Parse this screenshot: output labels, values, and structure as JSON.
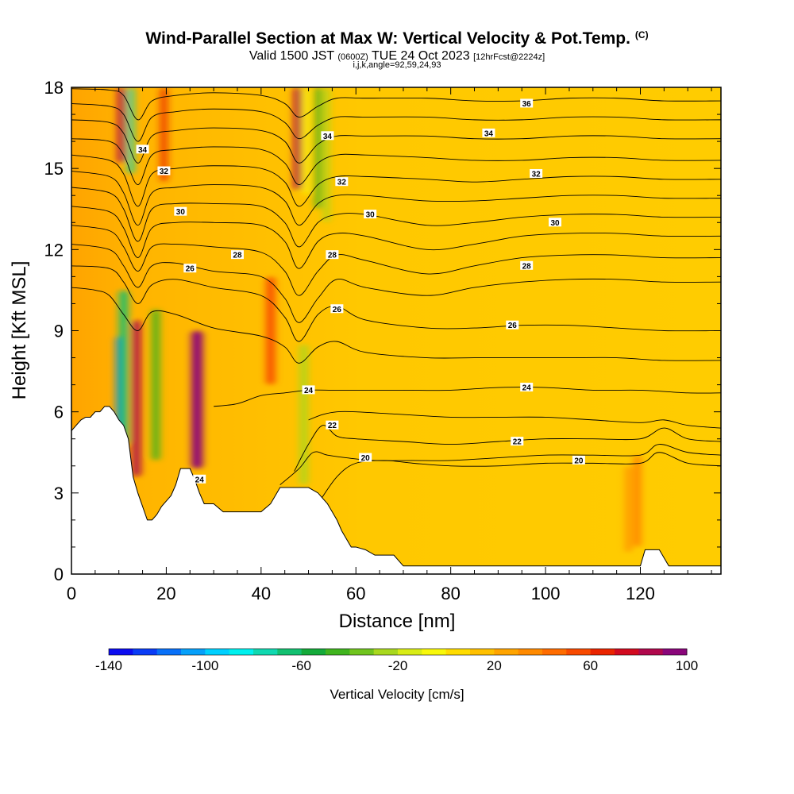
{
  "header": {
    "title": "Wind-Parallel Section at Max W: Vertical Velocity & Pot.Temp.",
    "copyright": "(C)",
    "valid_prefix": "Valid 1500 JST",
    "valid_utc": "(0600Z)",
    "valid_date": "TUE 24 Oct 2023",
    "forecast": "[12hrFcst@2224z]",
    "info": "i,j,k,angle=92,59,24,93"
  },
  "chart_data": {
    "type": "heatmap",
    "title": "Wind-Parallel Section at Max W: Vertical Velocity & Pot.Temp.",
    "xlabel": "Distance [nm]",
    "ylabel": "Height [Kft MSL]",
    "xlim": [
      0,
      137
    ],
    "ylim": [
      0,
      18
    ],
    "xticks": [
      0,
      20,
      40,
      60,
      80,
      100,
      120
    ],
    "yticks": [
      0,
      3,
      6,
      9,
      12,
      15,
      18
    ],
    "colorbar": {
      "label": "Vertical Velocity [cm/s]",
      "min": -140,
      "max": 100,
      "step": 10,
      "tick_values": [
        -140,
        -100,
        -60,
        -20,
        20,
        60,
        100
      ],
      "colors": [
        "#0c0cf0",
        "#0a3cf6",
        "#0870f8",
        "#06a0fa",
        "#00d0ff",
        "#00f0ee",
        "#10d8b0",
        "#12c070",
        "#14aa3a",
        "#40b41e",
        "#70c41e",
        "#a8d81e",
        "#d8ec16",
        "#f8f80a",
        "#ffdc00",
        "#ffc000",
        "#ffa400",
        "#ff8a00",
        "#ff6c00",
        "#f84a00",
        "#ea2400",
        "#d20a20",
        "#b0084c",
        "#8a067a",
        "#640690"
      ]
    },
    "contours": {
      "variable": "Potential Temperature",
      "labels": [
        {
          "text": "36",
          "x": 96,
          "y": 17.4
        },
        {
          "text": "34",
          "x": 15,
          "y": 15.7
        },
        {
          "text": "34",
          "x": 54,
          "y": 16.2
        },
        {
          "text": "34",
          "x": 88,
          "y": 16.3
        },
        {
          "text": "32",
          "x": 19.5,
          "y": 14.9
        },
        {
          "text": "32",
          "x": 57,
          "y": 14.5
        },
        {
          "text": "32",
          "x": 98,
          "y": 14.8
        },
        {
          "text": "30",
          "x": 23,
          "y": 13.4
        },
        {
          "text": "30",
          "x": 63,
          "y": 13.3
        },
        {
          "text": "30",
          "x": 102,
          "y": 13.0
        },
        {
          "text": "28",
          "x": 35,
          "y": 11.8
        },
        {
          "text": "28",
          "x": 55,
          "y": 11.8
        },
        {
          "text": "28",
          "x": 96,
          "y": 11.4
        },
        {
          "text": "26",
          "x": 25,
          "y": 11.3
        },
        {
          "text": "26",
          "x": 56,
          "y": 9.8
        },
        {
          "text": "26",
          "x": 93,
          "y": 9.2
        },
        {
          "text": "24",
          "x": 50,
          "y": 6.8
        },
        {
          "text": "24",
          "x": 96,
          "y": 6.9
        },
        {
          "text": "24",
          "x": 27,
          "y": 3.5
        },
        {
          "text": "22",
          "x": 55,
          "y": 5.5
        },
        {
          "text": "22",
          "x": 94,
          "y": 4.9
        },
        {
          "text": "20",
          "x": 62,
          "y": 4.3
        },
        {
          "text": "20",
          "x": 107,
          "y": 4.2
        }
      ],
      "lines": [
        {
          "level": 36,
          "x": [
            0,
            8,
            11,
            14,
            17,
            22,
            30,
            40,
            45,
            48,
            52,
            56,
            62,
            75,
            85,
            95,
            105,
            115,
            125,
            137
          ],
          "y": [
            17.95,
            17.9,
            17.7,
            16.8,
            17.5,
            17.7,
            17.8,
            17.7,
            17.4,
            16.9,
            17.3,
            17.6,
            17.6,
            17.6,
            17.5,
            17.5,
            17.6,
            17.6,
            17.5,
            17.5
          ]
        },
        {
          "level": 35,
          "x": [
            0,
            8,
            11,
            14,
            17,
            22,
            30,
            40,
            45,
            48,
            52,
            56,
            62,
            75,
            85,
            95,
            105,
            115,
            125,
            137
          ],
          "y": [
            17.4,
            17.3,
            17.0,
            16.0,
            16.9,
            17.1,
            17.2,
            17.1,
            16.7,
            16.1,
            16.6,
            16.9,
            16.9,
            16.9,
            16.8,
            16.8,
            16.9,
            16.9,
            16.8,
            16.8
          ]
        },
        {
          "level": 34,
          "x": [
            0,
            8,
            11,
            14,
            17,
            22,
            30,
            40,
            45,
            48,
            52,
            56,
            62,
            75,
            85,
            95,
            105,
            115,
            125,
            137
          ],
          "y": [
            16.8,
            16.7,
            16.3,
            15.2,
            16.2,
            16.4,
            16.5,
            16.4,
            16.0,
            15.2,
            15.9,
            16.2,
            16.2,
            16.2,
            16.1,
            16.1,
            16.2,
            16.2,
            16.1,
            16.1
          ]
        },
        {
          "level": 33,
          "x": [
            0,
            8,
            11,
            14,
            17,
            22,
            30,
            40,
            45,
            48,
            52,
            56,
            62,
            75,
            85,
            95,
            105,
            115,
            125,
            137
          ],
          "y": [
            16.1,
            16.0,
            15.5,
            14.4,
            15.5,
            15.7,
            15.8,
            15.7,
            15.2,
            14.4,
            15.2,
            15.5,
            15.5,
            15.4,
            15.3,
            15.3,
            15.4,
            15.4,
            15.3,
            15.3
          ]
        },
        {
          "level": 32,
          "x": [
            0,
            8,
            11,
            14,
            17,
            22,
            30,
            40,
            45,
            48,
            52,
            56,
            62,
            75,
            85,
            95,
            105,
            115,
            125,
            137
          ],
          "y": [
            15.5,
            15.3,
            14.8,
            13.6,
            14.8,
            15.0,
            15.1,
            15.0,
            14.5,
            13.6,
            14.4,
            14.7,
            14.7,
            14.6,
            14.5,
            14.6,
            14.7,
            14.7,
            14.6,
            14.6
          ]
        },
        {
          "level": 31,
          "x": [
            0,
            8,
            11,
            14,
            17,
            22,
            30,
            40,
            45,
            48,
            52,
            56,
            62,
            75,
            85,
            95,
            105,
            115,
            125,
            137
          ],
          "y": [
            14.9,
            14.7,
            14.1,
            12.9,
            14.1,
            14.3,
            14.4,
            14.3,
            13.8,
            12.9,
            13.7,
            14.0,
            14.0,
            13.8,
            13.8,
            13.9,
            14.0,
            14.0,
            13.9,
            13.9
          ]
        },
        {
          "level": 30,
          "x": [
            0,
            8,
            11,
            14,
            17,
            22,
            30,
            40,
            45,
            48,
            52,
            56,
            62,
            75,
            85,
            95,
            105,
            115,
            125,
            137
          ],
          "y": [
            14.3,
            14.1,
            13.5,
            12.3,
            13.5,
            13.7,
            13.7,
            13.6,
            13.0,
            12.1,
            13.0,
            13.3,
            13.3,
            12.9,
            13.0,
            13.2,
            13.3,
            13.3,
            13.2,
            13.2
          ]
        },
        {
          "level": 29,
          "x": [
            0,
            8,
            11,
            14,
            17,
            22,
            30,
            40,
            45,
            48,
            52,
            56,
            62,
            75,
            85,
            95,
            105,
            115,
            125,
            137
          ],
          "y": [
            13.6,
            13.4,
            12.8,
            11.7,
            12.8,
            13.0,
            13.0,
            12.9,
            12.3,
            11.3,
            12.3,
            12.6,
            12.5,
            12.0,
            12.2,
            12.5,
            12.6,
            12.6,
            12.5,
            12.5
          ]
        },
        {
          "level": 28,
          "x": [
            0,
            8,
            11,
            14,
            17,
            22,
            30,
            40,
            45,
            48,
            52,
            56,
            62,
            75,
            85,
            95,
            105,
            115,
            125,
            137
          ],
          "y": [
            12.9,
            12.7,
            12.1,
            11.2,
            12.1,
            12.2,
            12.1,
            11.9,
            11.2,
            10.3,
            11.2,
            11.8,
            11.6,
            11.1,
            11.4,
            11.7,
            11.8,
            11.8,
            11.7,
            11.7
          ]
        },
        {
          "level": 27,
          "x": [
            0,
            8,
            11,
            14,
            17,
            22,
            30,
            40,
            45,
            48,
            52,
            56,
            62,
            75,
            85,
            95,
            105,
            115,
            125,
            137
          ],
          "y": [
            12.2,
            12.0,
            11.4,
            10.6,
            11.4,
            11.5,
            11.2,
            11.0,
            10.2,
            9.3,
            10.2,
            10.9,
            10.6,
            10.3,
            10.6,
            10.8,
            10.9,
            10.9,
            10.8,
            10.8
          ]
        },
        {
          "level": 26,
          "x": [
            0,
            8,
            11,
            14,
            17,
            22,
            30,
            40,
            45,
            48,
            52,
            56,
            62,
            75,
            85,
            95,
            105,
            115,
            125,
            137
          ],
          "y": [
            11.4,
            11.3,
            10.8,
            10.0,
            10.7,
            10.9,
            10.6,
            10.3,
            9.5,
            8.6,
            9.6,
            9.9,
            9.4,
            9.1,
            9.1,
            9.2,
            9.2,
            9.1,
            9.0,
            9.0
          ]
        },
        {
          "level": 25,
          "x": [
            0,
            5,
            8,
            11,
            14,
            17,
            22,
            30,
            40,
            45,
            48,
            52,
            56,
            62,
            75,
            85,
            95,
            105,
            115,
            125,
            137
          ],
          "y": [
            10.6,
            10.5,
            10.3,
            9.6,
            9.0,
            9.7,
            9.6,
            9.1,
            8.8,
            8.4,
            7.8,
            8.4,
            8.6,
            8.2,
            8.0,
            8.0,
            8.0,
            8.0,
            8.0,
            7.9,
            7.9
          ]
        },
        {
          "level": 24,
          "x": [
            30,
            35,
            40,
            45,
            50,
            55,
            60,
            70,
            80,
            90,
            100,
            110,
            120,
            130,
            137
          ],
          "y": [
            6.2,
            6.3,
            6.6,
            6.7,
            6.8,
            6.8,
            6.8,
            6.8,
            6.8,
            6.9,
            6.9,
            6.8,
            6.8,
            6.7,
            6.7
          ]
        },
        {
          "level": 23,
          "x": [
            50,
            53,
            56,
            60,
            70,
            80,
            90,
            100,
            110,
            120,
            125,
            130,
            137
          ],
          "y": [
            5.7,
            5.9,
            6.0,
            6.0,
            5.9,
            5.8,
            5.8,
            5.8,
            5.7,
            5.6,
            5.7,
            5.5,
            5.4
          ]
        },
        {
          "level": 22,
          "x": [
            47,
            50,
            53,
            56,
            60,
            70,
            80,
            90,
            100,
            110,
            120,
            125,
            130,
            137
          ],
          "y": [
            3.8,
            4.8,
            5.5,
            5.1,
            5.0,
            4.9,
            4.8,
            4.9,
            5.0,
            5.0,
            5.0,
            5.4,
            5.0,
            4.9
          ]
        },
        {
          "level": 21,
          "x": [
            44,
            48,
            51,
            54,
            58,
            64,
            72,
            80,
            90,
            100,
            110,
            120,
            124,
            130,
            137
          ],
          "y": [
            3.3,
            3.9,
            4.5,
            4.4,
            4.3,
            4.2,
            4.2,
            4.2,
            4.3,
            4.4,
            4.4,
            4.4,
            4.8,
            4.5,
            4.4
          ]
        },
        {
          "level": 20,
          "x": [
            52,
            56,
            60,
            66,
            72,
            80,
            90,
            100,
            110,
            120,
            124,
            130,
            137
          ],
          "y": [
            2.6,
            3.6,
            4.1,
            4.2,
            4.1,
            4.0,
            4.0,
            4.1,
            4.1,
            4.1,
            4.5,
            4.1,
            4.0
          ]
        }
      ]
    },
    "terrain": {
      "x": [
        0,
        1,
        2,
        3,
        4,
        5,
        6,
        7,
        8,
        9,
        10,
        11,
        12,
        13,
        14,
        15,
        16,
        17,
        18,
        19,
        20,
        21,
        22,
        23,
        24,
        25,
        26,
        27,
        28,
        29,
        30,
        32,
        34,
        36,
        38,
        40,
        42,
        44,
        46,
        48,
        50,
        52,
        53,
        54,
        55,
        56,
        57,
        58,
        59,
        60,
        62,
        64,
        66,
        68,
        70,
        72,
        74,
        76,
        78,
        80,
        90,
        100,
        110,
        120,
        121,
        122,
        123,
        124,
        125,
        126,
        130,
        137
      ],
      "y": [
        5.3,
        5.5,
        5.7,
        5.8,
        5.8,
        6.0,
        6.0,
        6.2,
        6.2,
        6.0,
        5.7,
        5.5,
        5.0,
        3.6,
        3.0,
        2.5,
        2.0,
        2.0,
        2.2,
        2.5,
        2.7,
        2.9,
        3.3,
        3.9,
        3.9,
        3.9,
        3.5,
        3.0,
        2.6,
        2.6,
        2.6,
        2.3,
        2.3,
        2.3,
        2.3,
        2.3,
        2.6,
        3.2,
        3.2,
        3.2,
        3.2,
        3.0,
        2.8,
        2.6,
        2.3,
        2.0,
        1.6,
        1.3,
        1.0,
        1.0,
        0.9,
        0.7,
        0.7,
        0.7,
        0.3,
        0.3,
        0.3,
        0.3,
        0.3,
        0.3,
        0.3,
        0.3,
        0.3,
        0.3,
        0.9,
        0.9,
        0.9,
        0.9,
        0.6,
        0.3,
        0.3,
        0.3
      ]
    },
    "vertical_velocity_bands": [
      {
        "x": 10.2,
        "w": 1.5,
        "ytop": 8.8,
        "ybot": 5.2,
        "v": -115
      },
      {
        "x": 10.6,
        "w": 1.6,
        "ytop": 18,
        "ybot": 15.2,
        "v": 80
      },
      {
        "x": 12.5,
        "w": 1.2,
        "ytop": 18,
        "ybot": 14.8,
        "v": -80
      },
      {
        "x": 11.0,
        "w": 1.8,
        "ytop": 10.5,
        "ybot": 4.8,
        "v": -65
      },
      {
        "x": 13.7,
        "w": 1.8,
        "ytop": 9.4,
        "ybot": 3.6,
        "v": 85
      },
      {
        "x": 17.8,
        "w": 1.5,
        "ytop": 9.8,
        "ybot": 4.2,
        "v": -45
      },
      {
        "x": 19.5,
        "w": 1.2,
        "ytop": 18,
        "ybot": 14.5,
        "v": 60
      },
      {
        "x": 26.5,
        "w": 2.3,
        "ytop": 9.0,
        "ybot": 3.9,
        "v": 95
      },
      {
        "x": 42.0,
        "w": 1.8,
        "ytop": 11.0,
        "ybot": 7.0,
        "v": 50
      },
      {
        "x": 47.7,
        "w": 1.5,
        "ytop": 18,
        "ybot": 14.2,
        "v": 80
      },
      {
        "x": 49.6,
        "w": 1.1,
        "ytop": 18,
        "ybot": 14.0,
        "v": -10
      },
      {
        "x": 52.0,
        "w": 1.2,
        "ytop": 18,
        "ybot": 13.5,
        "v": -45
      },
      {
        "x": 53.8,
        "w": 1.1,
        "ytop": 18,
        "ybot": 13.0,
        "v": -30
      },
      {
        "x": 49.0,
        "w": 1.5,
        "ytop": 8.5,
        "ybot": 3.3,
        "v": -25
      },
      {
        "x": 119.4,
        "w": 1.1,
        "ytop": 4.4,
        "ybot": 1.0,
        "v": 45
      },
      {
        "x": 117.5,
        "w": 1.1,
        "ytop": 4.0,
        "ybot": 0.8,
        "v": 35
      }
    ]
  }
}
